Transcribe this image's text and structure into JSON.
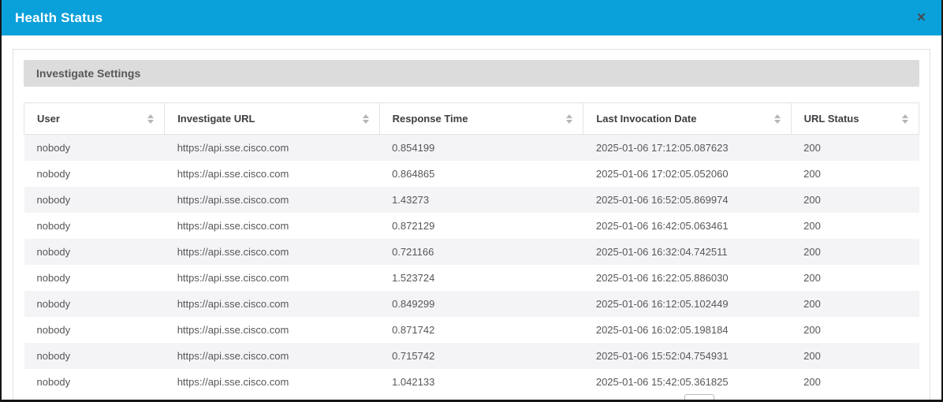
{
  "colors": {
    "header_bg": "#0aa0d9",
    "header_text": "#ffffff",
    "band_bg": "#dcdcdc",
    "stripe": "#f4f4f6",
    "frame_border": "#161616"
  },
  "modal": {
    "title": "Health Status",
    "close_icon": "×"
  },
  "panel": {
    "heading": "Investigate Settings"
  },
  "table": {
    "column_keys": [
      "user",
      "investigate_url",
      "response_time",
      "last_invocation_date",
      "url_status"
    ],
    "columns": [
      {
        "key": "user",
        "label": "User",
        "sortable": true
      },
      {
        "key": "investigate_url",
        "label": "Investigate URL",
        "sortable": true
      },
      {
        "key": "response_time",
        "label": "Response Time",
        "sortable": true
      },
      {
        "key": "last_invocation_date",
        "label": "Last Invocation Date",
        "sortable": true
      },
      {
        "key": "url_status",
        "label": "URL Status",
        "sortable": true
      }
    ],
    "rows": [
      {
        "user": "nobody",
        "investigate_url": "https://api.sse.cisco.com",
        "response_time": "0.854199",
        "last_invocation_date": "2025-01-06 17:12:05.087623",
        "url_status": "200"
      },
      {
        "user": "nobody",
        "investigate_url": "https://api.sse.cisco.com",
        "response_time": "0.864865",
        "last_invocation_date": "2025-01-06 17:02:05.052060",
        "url_status": "200"
      },
      {
        "user": "nobody",
        "investigate_url": "https://api.sse.cisco.com",
        "response_time": "1.43273",
        "last_invocation_date": "2025-01-06 16:52:05.869974",
        "url_status": "200"
      },
      {
        "user": "nobody",
        "investigate_url": "https://api.sse.cisco.com",
        "response_time": "0.872129",
        "last_invocation_date": "2025-01-06 16:42:05.063461",
        "url_status": "200"
      },
      {
        "user": "nobody",
        "investigate_url": "https://api.sse.cisco.com",
        "response_time": "0.721166",
        "last_invocation_date": "2025-01-06 16:32:04.742511",
        "url_status": "200"
      },
      {
        "user": "nobody",
        "investigate_url": "https://api.sse.cisco.com",
        "response_time": "1.523724",
        "last_invocation_date": "2025-01-06 16:22:05.886030",
        "url_status": "200"
      },
      {
        "user": "nobody",
        "investigate_url": "https://api.sse.cisco.com",
        "response_time": "0.849299",
        "last_invocation_date": "2025-01-06 16:12:05.102449",
        "url_status": "200"
      },
      {
        "user": "nobody",
        "investigate_url": "https://api.sse.cisco.com",
        "response_time": "0.871742",
        "last_invocation_date": "2025-01-06 16:02:05.198184",
        "url_status": "200"
      },
      {
        "user": "nobody",
        "investigate_url": "https://api.sse.cisco.com",
        "response_time": "0.715742",
        "last_invocation_date": "2025-01-06 15:52:04.754931",
        "url_status": "200"
      },
      {
        "user": "nobody",
        "investigate_url": "https://api.sse.cisco.com",
        "response_time": "1.042133",
        "last_invocation_date": "2025-01-06 15:42:05.361825",
        "url_status": "200"
      }
    ]
  }
}
